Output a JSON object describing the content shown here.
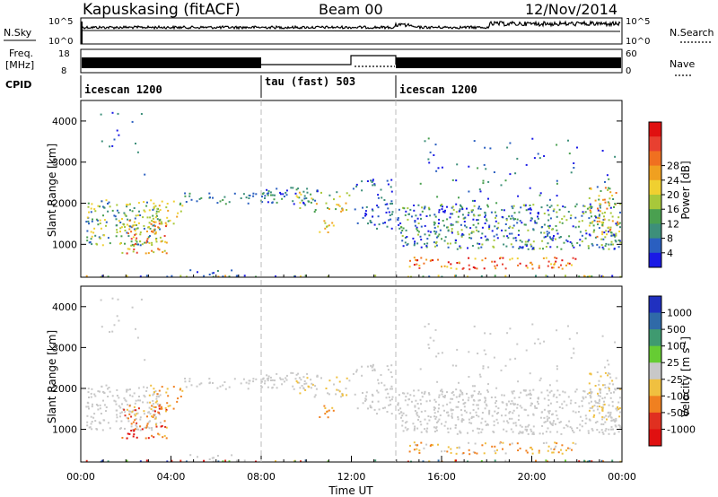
{
  "header": {
    "station": "Kapuskasing (fitACF)",
    "beam": "Beam 00",
    "date": "12/Nov/2014"
  },
  "top_panels": {
    "nsky_label": "N.Sky",
    "nsearch_label": "N.Search",
    "nsky_ticks": [
      "10^5",
      "10^0"
    ],
    "nsearch_ticks": [
      "10^5",
      "10^0"
    ],
    "freq_label_1": "Freq.",
    "freq_label_2": "[MHz]",
    "freq_ticks": [
      "18",
      "8"
    ],
    "nave_label": "Nave",
    "nave_ticks": [
      "60",
      "0"
    ],
    "cpid_label": "CPID",
    "cpid_segments": [
      {
        "label": "icescan 1200",
        "start": "00:00",
        "end": "08:00"
      },
      {
        "label": "tau (fast) 503",
        "start": "08:00",
        "end": "14:00"
      },
      {
        "label": "icescan 1200",
        "start": "14:00",
        "end": "24:00"
      }
    ]
  },
  "power_colorbar": {
    "label": "Power [dB]",
    "ticks": [
      "4",
      "8",
      "12",
      "16",
      "20",
      "24",
      "28"
    ],
    "colors": [
      "#1a1ae6",
      "#2a5fc0",
      "#3d8f7a",
      "#4aa050",
      "#a8c83a",
      "#f0d030",
      "#f0a020",
      "#f07020",
      "#e84030",
      "#e01010"
    ]
  },
  "velocity_colorbar": {
    "label": "Velocity [m s",
    "label_sup": "-1",
    "label_end": "]",
    "ticks": [
      "1000",
      "500",
      "100",
      "25",
      "-25",
      "-100",
      "-500",
      "-1000"
    ],
    "colors": [
      "#2030c0",
      "#2f6aa8",
      "#3f9a70",
      "#66cc33",
      "#c8c8c8",
      "#f0c040",
      "#f08020",
      "#e03020",
      "#e01010"
    ]
  },
  "chart_data": [
    {
      "type": "heatmap",
      "title": "Power",
      "ylabel": "Slant Range [km]",
      "yticks": [
        "1000",
        "2000",
        "3000",
        "4000"
      ],
      "ylim": [
        200,
        4500
      ],
      "xlim": [
        "00:00",
        "24:00"
      ],
      "zlabel": "Power [dB]",
      "zticks": [
        4,
        8,
        12,
        16,
        20,
        24,
        28
      ]
    },
    {
      "type": "heatmap",
      "title": "Velocity",
      "ylabel": "Slant Range [km]",
      "yticks": [
        "1000",
        "2000",
        "3000",
        "4000"
      ],
      "ylim": [
        200,
        4500
      ],
      "xlim": [
        "00:00",
        "24:00"
      ],
      "xlabel": "Time UT",
      "xticks": [
        "00:00",
        "04:00",
        "08:00",
        "12:00",
        "16:00",
        "20:00",
        "00:00"
      ],
      "zlabel": "Velocity [m s-1]",
      "zticks": [
        1000,
        500,
        100,
        25,
        -25,
        -100,
        -500,
        -1000
      ]
    }
  ]
}
